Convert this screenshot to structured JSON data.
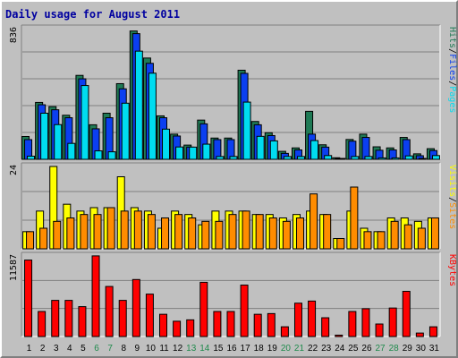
{
  "title": "Daily usage for August 2011",
  "colors": {
    "background": "#c0c0c0",
    "hits": "#1f7a55",
    "files": "#0b3ff0",
    "pages": "#00dcf0",
    "visits": "#ffff00",
    "sites": "#ff8c00",
    "kbytes": "#ff0000",
    "weekend_day_label": "#1f8a4c",
    "title": "#0000a0"
  },
  "chart_data": [
    {
      "type": "bar",
      "panel": "hits-files-pages",
      "max_label": "836",
      "ylim": [
        0,
        836
      ],
      "legend": {
        "hits": "Hits",
        "files": "Files",
        "pages": "Pages",
        "sep": "/"
      },
      "categories": [
        "1",
        "2",
        "3",
        "4",
        "5",
        "6",
        "7",
        "8",
        "9",
        "10",
        "11",
        "12",
        "13",
        "14",
        "15",
        "16",
        "17",
        "18",
        "19",
        "20",
        "21",
        "22",
        "23",
        "24",
        "25",
        "26",
        "27",
        "28",
        "29",
        "30",
        "31"
      ],
      "series": [
        {
          "name": "Hits",
          "color": "#1f7a55",
          "values": [
            146,
            364,
            337,
            282,
            537,
            221,
            295,
            484,
            821,
            648,
            278,
            161,
            91,
            251,
            136,
            136,
            570,
            242,
            170,
            51,
            73,
            307,
            93,
            10,
            127,
            161,
            80,
            73,
            140,
            35,
            68
          ]
        },
        {
          "name": "Files",
          "color": "#0b3ff0",
          "values": [
            126,
            349,
            317,
            266,
            515,
            195,
            266,
            451,
            804,
            614,
            266,
            149,
            78,
            227,
            126,
            126,
            550,
            221,
            152,
            38,
            60,
            161,
            78,
            4,
            116,
            140,
            58,
            60,
            126,
            23,
            56
          ]
        },
        {
          "name": "Pages",
          "color": "#00dcf0",
          "values": [
            20,
            295,
            222,
            102,
            472,
            54,
            48,
            359,
            692,
            551,
            193,
            79,
            78,
            97,
            18,
            18,
            366,
            147,
            118,
            18,
            18,
            120,
            24,
            0,
            18,
            18,
            9,
            9,
            22,
            4,
            24
          ]
        }
      ]
    },
    {
      "type": "bar",
      "panel": "visits-sites",
      "max_label": "24",
      "ylim": [
        0,
        24
      ],
      "legend": {
        "visits": "Visits",
        "sites": "Sites",
        "sep": "/"
      },
      "categories": [
        "1",
        "2",
        "3",
        "4",
        "5",
        "6",
        "7",
        "8",
        "9",
        "10",
        "11",
        "12",
        "13",
        "14",
        "15",
        "16",
        "17",
        "18",
        "19",
        "20",
        "21",
        "22",
        "23",
        "24",
        "25",
        "26",
        "27",
        "28",
        "29",
        "30",
        "31"
      ],
      "series": [
        {
          "name": "Visits",
          "color": "#ffff00",
          "values": [
            5,
            11,
            24,
            13,
            11,
            12,
            12,
            21,
            12,
            11,
            6,
            11,
            10,
            7,
            11,
            11,
            11,
            10,
            10,
            9,
            10,
            11,
            10,
            3,
            11,
            6,
            5,
            9,
            9,
            8,
            9
          ]
        },
        {
          "name": "Sites",
          "color": "#ff8c00",
          "values": [
            5,
            6,
            8,
            9,
            10,
            10,
            12,
            11,
            11,
            10,
            9,
            10,
            9,
            8,
            8,
            10,
            11,
            10,
            9,
            8,
            9,
            16,
            10,
            3,
            18,
            5,
            5,
            8,
            7,
            6,
            9
          ]
        }
      ]
    },
    {
      "type": "bar",
      "panel": "kbytes",
      "max_label": "11587",
      "ylim": [
        0,
        11587
      ],
      "legend": {
        "kbytes": "KBytes"
      },
      "categories": [
        "1",
        "2",
        "3",
        "4",
        "5",
        "6",
        "7",
        "8",
        "9",
        "10",
        "11",
        "12",
        "13",
        "14",
        "15",
        "16",
        "17",
        "18",
        "19",
        "20",
        "21",
        "22",
        "23",
        "24",
        "25",
        "26",
        "27",
        "28",
        "29",
        "30",
        "31"
      ],
      "series": [
        {
          "name": "KBytes",
          "color": "#ff0000",
          "values": [
            11000,
            3600,
            5200,
            5200,
            4300,
            11600,
            7200,
            5200,
            8200,
            6100,
            3200,
            2200,
            2400,
            7800,
            3600,
            3600,
            7400,
            3200,
            3300,
            1400,
            4800,
            5100,
            2700,
            200,
            3600,
            4000,
            1800,
            4100,
            6500,
            500,
            1400
          ]
        }
      ]
    }
  ],
  "day_labels": [
    "1",
    "2",
    "3",
    "4",
    "5",
    "6",
    "7",
    "8",
    "9",
    "10",
    "11",
    "12",
    "13",
    "14",
    "15",
    "16",
    "17",
    "18",
    "19",
    "20",
    "21",
    "22",
    "23",
    "24",
    "25",
    "26",
    "27",
    "28",
    "29",
    "30",
    "31"
  ],
  "weekend_days": [
    "6",
    "7",
    "13",
    "14",
    "20",
    "21",
    "27",
    "28"
  ]
}
